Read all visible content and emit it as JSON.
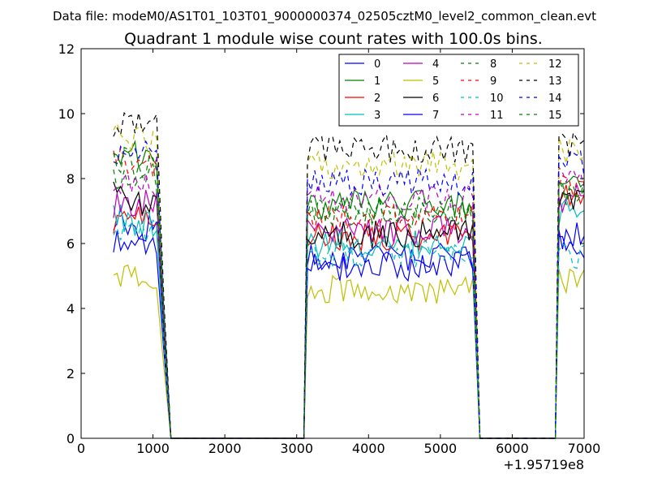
{
  "figure": {
    "suptitle": "Data file: modeM0/AS1T01_103T01_9000000374_02505cztM0_level2_common_clean.evt",
    "offset_text": "+1.95719e8"
  },
  "chart_data": {
    "type": "line",
    "title": "Quadrant 1 module wise count rates with 100.0s bins.",
    "xlabel": "",
    "ylabel": "",
    "xlim": [
      0,
      7000
    ],
    "ylim": [
      0,
      12
    ],
    "x_offset": 195719000,
    "xticks": [
      0,
      1000,
      2000,
      3000,
      4000,
      5000,
      6000,
      7000
    ],
    "yticks": [
      0,
      2,
      4,
      6,
      8,
      10,
      12
    ],
    "legend_position": "top-right",
    "segments": [
      {
        "x_start": 450,
        "x_end": 1050,
        "rest": [
          1150,
          1250
        ],
        "zero_from": 1300,
        "zero_to": 3050
      },
      {
        "x_start": 3150,
        "x_end": 5450,
        "rest": [
          3100
        ],
        "zero_from": 5550,
        "zero_to": 6550
      },
      {
        "x_start": 6650,
        "x_end": 7000,
        "rest": [
          6600
        ],
        "zero_from": null,
        "zero_to": null
      }
    ],
    "series": [
      {
        "name": "0",
        "color": "#0000ff",
        "style": "solid",
        "level": [
          6.5,
          5.6,
          6.2
        ]
      },
      {
        "name": "1",
        "color": "#008000",
        "style": "solid",
        "level": [
          8.7,
          7.2,
          7.8
        ]
      },
      {
        "name": "2",
        "color": "#ff0000",
        "style": "solid",
        "level": [
          6.8,
          6.2,
          7.6
        ]
      },
      {
        "name": "3",
        "color": "#00bfbf",
        "style": "solid",
        "level": [
          6.6,
          6.0,
          7.0
        ]
      },
      {
        "name": "4",
        "color": "#bf00bf",
        "style": "solid",
        "level": [
          7.2,
          6.4,
          7.4
        ]
      },
      {
        "name": "5",
        "color": "#bfbf00",
        "style": "solid",
        "level": [
          4.9,
          4.6,
          4.9
        ]
      },
      {
        "name": "6",
        "color": "#000000",
        "style": "solid",
        "level": [
          7.2,
          6.3,
          7.3
        ]
      },
      {
        "name": "7",
        "color": "#0000ff",
        "style": "solid",
        "level": [
          6.0,
          5.3,
          6.0
        ]
      },
      {
        "name": "8",
        "color": "#008000",
        "style": "dashed",
        "level": [
          8.0,
          6.9,
          7.6
        ]
      },
      {
        "name": "9",
        "color": "#ff0000",
        "style": "dashed",
        "level": [
          8.4,
          6.8,
          7.8
        ]
      },
      {
        "name": "10",
        "color": "#00bfbf",
        "style": "dashed",
        "level": [
          6.4,
          5.7,
          5.6
        ]
      },
      {
        "name": "11",
        "color": "#bf00bf",
        "style": "dashed",
        "level": [
          7.8,
          7.4,
          8.0
        ]
      },
      {
        "name": "12",
        "color": "#bfbf00",
        "style": "dashed",
        "level": [
          9.2,
          8.4,
          8.9
        ]
      },
      {
        "name": "13",
        "color": "#000000",
        "style": "dashed",
        "level": [
          9.6,
          8.9,
          9.0
        ]
      },
      {
        "name": "14",
        "color": "#0000ff",
        "style": "dashed",
        "level": [
          8.8,
          7.9,
          8.4
        ]
      },
      {
        "name": "15",
        "color": "#008000",
        "style": "dashed",
        "level": [
          8.4,
          7.0,
          7.6
        ]
      }
    ]
  }
}
